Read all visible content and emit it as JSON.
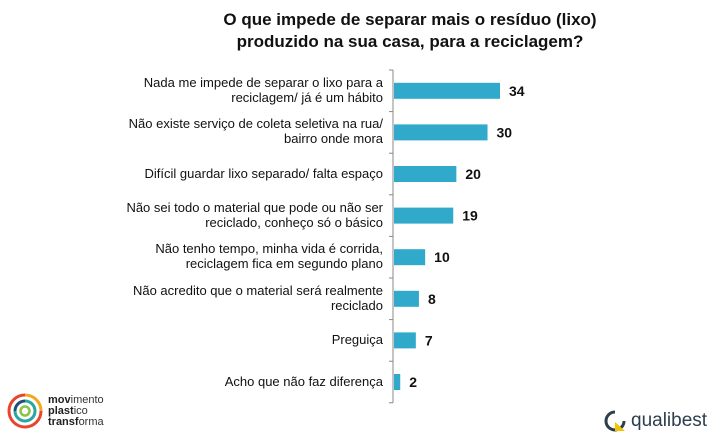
{
  "chart_data": {
    "type": "bar",
    "orientation": "horizontal",
    "title": "O que impede de separar mais o resíduo (lixo)\nproduzido na sua casa, para a reciclagem?",
    "categories": [
      "Nada me impede de separar o lixo para a\nreciclagem/ já é um hábito",
      "Não existe serviço de coleta seletiva na rua/\nbairro onde mora",
      "Difícil guardar lixo separado/ falta espaço",
      "Não sei todo o material que pode ou não ser\nreciclado, conheço só o básico",
      "Não tenho tempo, minha vida é corrida,\nreciclagem fica em segundo plano",
      "Não acredito que o material será realmente\nreciclado",
      "Preguiça",
      "Acho que não faz diferença"
    ],
    "values": [
      34,
      30,
      20,
      19,
      10,
      8,
      7,
      2
    ],
    "data_labels": [
      "34",
      "30",
      "20",
      "19",
      "10",
      "8",
      "7",
      "2"
    ],
    "xlim": [
      0,
      40
    ],
    "grid": false,
    "bar_color": "#31a9cb"
  },
  "logos": {
    "left": {
      "line1_bold": "mov",
      "line1": "imento",
      "line2_bold": "plast",
      "line2": "ico",
      "line3_bold": "transf",
      "line3": "orma"
    },
    "right": {
      "text": "qualibest"
    }
  }
}
